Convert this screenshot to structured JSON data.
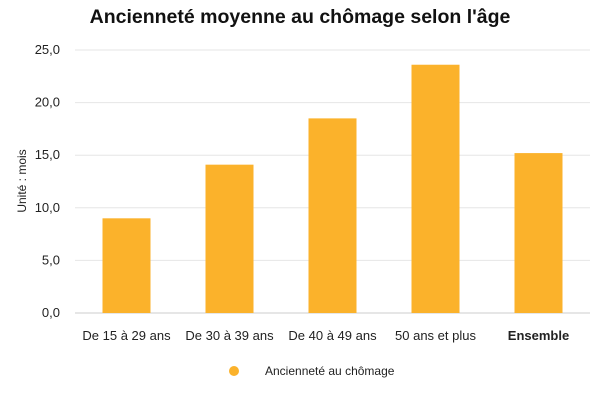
{
  "chart_data": {
    "type": "bar",
    "title": "Ancienneté moyenne au chômage selon l'âge",
    "ylabel": "Unité : mois",
    "xlabel": "",
    "categories": [
      "De 15 à 29 ans",
      "De 30 à 39 ans",
      "De 40 à 49 ans",
      "50 ans et plus",
      "Ensemble"
    ],
    "bold_categories": [
      "Ensemble"
    ],
    "series": [
      {
        "name": "Ancienneté au chômage",
        "values": [
          9.0,
          14.1,
          18.5,
          23.6,
          15.2
        ],
        "color": "#FBB22B"
      }
    ],
    "ylim": [
      0,
      25
    ],
    "yticks": [
      "0,0",
      "5,0",
      "10,0",
      "15,0",
      "20,0",
      "25,0"
    ],
    "grid": true,
    "legend_position": "bottom"
  }
}
